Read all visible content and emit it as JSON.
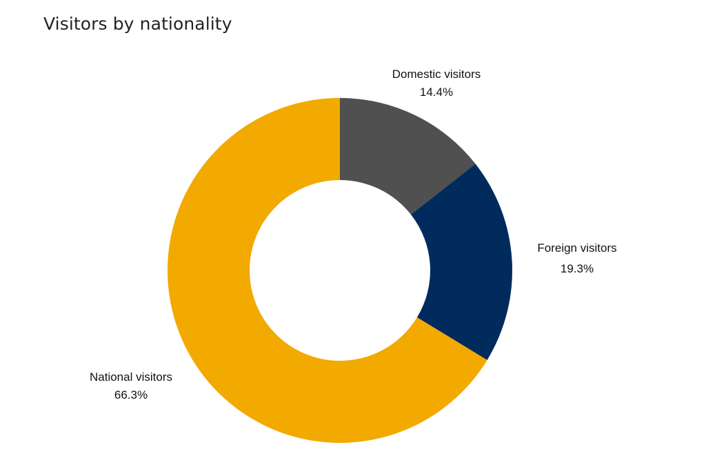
{
  "chart_data": {
    "type": "pie",
    "variant": "donut",
    "title": "Visitors by nationality",
    "slices": [
      {
        "name": "Domestic visitors",
        "value": 14.4,
        "label": "14.4%",
        "color": "#505050"
      },
      {
        "name": "Foreign visitors",
        "value": 19.3,
        "label": "19.3%",
        "color": "#002b5c"
      },
      {
        "name": "National visitors",
        "value": 66.3,
        "label": "66.3%",
        "color": "#f2a900"
      }
    ],
    "legend": "none",
    "labels_placement": "outside"
  }
}
